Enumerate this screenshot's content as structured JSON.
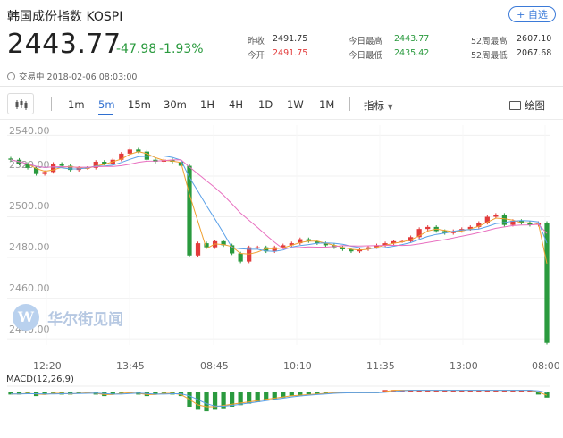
{
  "header": {
    "title": "韩国成份指数  KOSPI",
    "favorite_label": "+ 自选"
  },
  "quote": {
    "price": "2443.77",
    "change": "-47.98",
    "change_pct": "-1.93%",
    "trade_status": "交易中 2018-02-06 08:03:00"
  },
  "stats": [
    {
      "label": "昨收",
      "value": "2491.75",
      "color": "default"
    },
    {
      "label": "今开",
      "value": "2491.75",
      "color": "red"
    },
    {
      "label": "今日最高",
      "value": "2443.77",
      "color": "green"
    },
    {
      "label": "今日最低",
      "value": "2435.42",
      "color": "green"
    },
    {
      "label": "52周最高",
      "value": "2607.10",
      "color": "default"
    },
    {
      "label": "52周最低",
      "value": "2067.68",
      "color": "default"
    }
  ],
  "toolbar": {
    "timeframes": [
      "1m",
      "5m",
      "15m",
      "30m",
      "1H",
      "4H",
      "1D",
      "1W",
      "1M"
    ],
    "active": "5m",
    "indicator_label": "指标",
    "draw_label": "绘图"
  },
  "watermark": "华尔街见闻",
  "colors": {
    "up": "#e23b3b",
    "down": "#2a9a3e",
    "accent": "#2f6fd0",
    "ma_orange": "#f0a030",
    "ma_blue": "#5aa0e8",
    "ma_pink": "#e870c0"
  },
  "chart_data": [
    {
      "type": "candlestick",
      "title": "",
      "y_ticks": [
        "2540.00",
        "2520.00",
        "2500.00",
        "2480.00",
        "2460.00",
        "2440.00"
      ],
      "ylim": [
        2437,
        2545
      ],
      "x_ticks": [
        "12:20",
        "13:45",
        "08:45",
        "10:10",
        "11:35",
        "13:00",
        "08:00"
      ],
      "series": [
        {
          "values": [
            2528,
            2526,
            2524,
            2521,
            2522,
            2526,
            2525,
            2523,
            2524,
            2524,
            2527,
            2526,
            2528,
            2531,
            2533,
            2532,
            2528,
            2527,
            2528,
            2527,
            2525,
            2481,
            2487,
            2485,
            2488,
            2486,
            2482,
            2478,
            2485,
            2485,
            2483,
            2485,
            2486,
            2487,
            2489,
            2488,
            2487,
            2486,
            2485,
            2484,
            2483,
            2484,
            2485,
            2486,
            2487,
            2488,
            2488,
            2490,
            2494,
            2495,
            2493,
            2492,
            2493,
            2494,
            2495,
            2497,
            2500,
            2501,
            2496,
            2498,
            2497,
            2496,
            2497,
            2438
          ]
        }
      ]
    },
    {
      "type": "bar",
      "title": "MACD(12,26,9)",
      "series": [
        {
          "values": [
            -2,
            -2,
            -1,
            -3,
            -2,
            -1,
            -2,
            -2,
            -1,
            -1,
            -2,
            -3,
            -2,
            -1,
            -1,
            -2,
            -3,
            -2,
            -1,
            -2,
            -3,
            -10,
            -12,
            -13,
            -12,
            -11,
            -10,
            -9,
            -8,
            -7,
            -6,
            -5,
            -4,
            -3,
            -3,
            -2,
            -2,
            -1,
            -1,
            -1,
            -1,
            -1,
            -1,
            -1,
            1,
            1,
            1,
            1,
            1,
            1,
            1,
            1,
            1,
            1,
            1,
            1,
            1,
            1,
            1,
            1,
            1,
            1,
            -2,
            -4
          ]
        }
      ]
    }
  ]
}
